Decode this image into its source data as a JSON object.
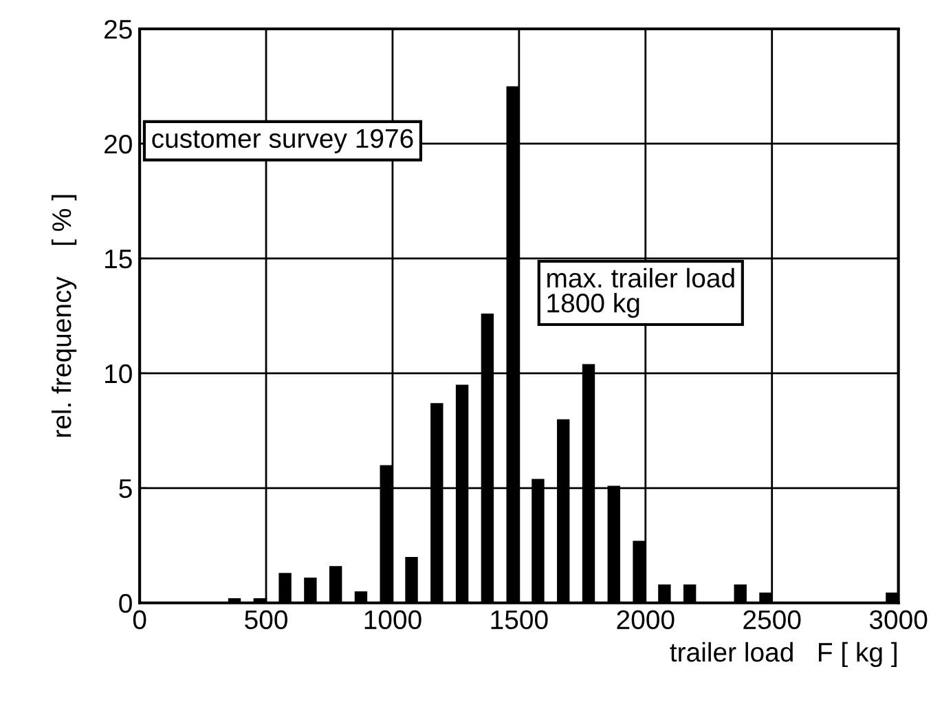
{
  "chart_data": {
    "type": "bar",
    "xlabel": "trailer load   F [ kg ]",
    "ylabel": "rel. frequency    [ % ]",
    "x": [
      375,
      475,
      575,
      675,
      775,
      875,
      975,
      1075,
      1175,
      1275,
      1375,
      1475,
      1575,
      1675,
      1775,
      1875,
      1975,
      2075,
      2175,
      2375,
      2475,
      2975
    ],
    "values": [
      0.2,
      0.2,
      1.3,
      1.1,
      1.6,
      0.5,
      6.0,
      2.0,
      8.7,
      9.5,
      12.6,
      22.5,
      5.4,
      8.0,
      10.4,
      5.1,
      2.7,
      0.8,
      0.8,
      0.8,
      0.45,
      0.45
    ],
    "color": "#000000",
    "xlim": [
      0,
      3000
    ],
    "xticks": [
      0,
      500,
      1000,
      1500,
      2000,
      2500,
      3000
    ],
    "ylim": [
      0,
      25
    ],
    "yticks": [
      0,
      5,
      10,
      15,
      20,
      25
    ],
    "grid": true,
    "annotations": [
      "customer survey 1976",
      "max. trailer load\n1800 kg"
    ]
  }
}
